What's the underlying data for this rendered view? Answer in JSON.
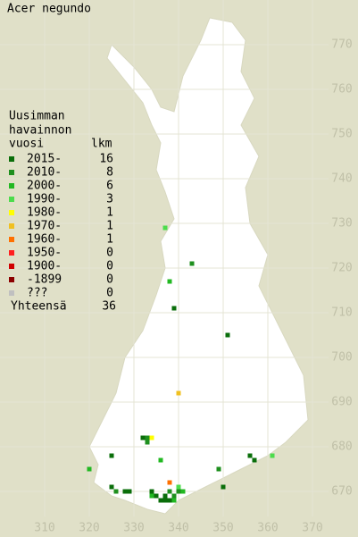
{
  "title": "Acer negundo",
  "legend": {
    "heading": [
      "Uusimman",
      "havainnon",
      "vuosi"
    ],
    "count_heading": "lkm",
    "rows": [
      {
        "label": "2015-",
        "count": 16,
        "color": "#0a6e0a"
      },
      {
        "label": "2010-",
        "count": 8,
        "color": "#1e8f1e"
      },
      {
        "label": "2000-",
        "count": 6,
        "color": "#22b822"
      },
      {
        "label": "1990-",
        "count": 3,
        "color": "#4cdc4c"
      },
      {
        "label": "1980-",
        "count": 1,
        "color": "#ffff00"
      },
      {
        "label": "1970-",
        "count": 1,
        "color": "#f0c020"
      },
      {
        "label": "1960-",
        "count": 1,
        "color": "#ff7000"
      },
      {
        "label": "1950-",
        "count": 0,
        "color": "#ff2020"
      },
      {
        "label": "1900-",
        "count": 0,
        "color": "#d00000"
      },
      {
        "label": "-1899",
        "count": 0,
        "color": "#8c0000"
      },
      {
        "label": "???",
        "count": 0,
        "color": "#c0c0c0"
      }
    ],
    "total_label": "Yhteensä",
    "total": 36
  },
  "map": {
    "xlim": [
      300,
      380
    ],
    "ylim": [
      660,
      780
    ],
    "xticks": [
      310,
      320,
      330,
      340,
      350,
      360,
      370
    ],
    "yticks": [
      670,
      680,
      690,
      700,
      710,
      720,
      730,
      740,
      750,
      760,
      770
    ],
    "points": [
      {
        "x": 339,
        "y": 711,
        "period": 0
      },
      {
        "x": 351,
        "y": 705,
        "period": 0
      },
      {
        "x": 332,
        "y": 682,
        "period": 0
      },
      {
        "x": 325,
        "y": 678,
        "period": 0
      },
      {
        "x": 356,
        "y": 678,
        "period": 0
      },
      {
        "x": 357,
        "y": 677,
        "period": 0
      },
      {
        "x": 325,
        "y": 671,
        "period": 0
      },
      {
        "x": 328,
        "y": 670,
        "period": 0
      },
      {
        "x": 329,
        "y": 670,
        "period": 0
      },
      {
        "x": 334,
        "y": 670,
        "period": 0
      },
      {
        "x": 335,
        "y": 669,
        "period": 0
      },
      {
        "x": 336,
        "y": 668,
        "period": 0
      },
      {
        "x": 337,
        "y": 668,
        "period": 0
      },
      {
        "x": 337,
        "y": 669,
        "period": 0
      },
      {
        "x": 338,
        "y": 668,
        "period": 0
      },
      {
        "x": 350,
        "y": 671,
        "period": 0
      },
      {
        "x": 343,
        "y": 721,
        "period": 1
      },
      {
        "x": 333,
        "y": 682,
        "period": 1
      },
      {
        "x": 349,
        "y": 675,
        "period": 1
      },
      {
        "x": 326,
        "y": 670,
        "period": 1
      },
      {
        "x": 338,
        "y": 670,
        "period": 1
      },
      {
        "x": 340,
        "y": 670,
        "period": 1
      },
      {
        "x": 339,
        "y": 669,
        "period": 1
      },
      {
        "x": 333,
        "y": 681,
        "period": 1
      },
      {
        "x": 338,
        "y": 717,
        "period": 2
      },
      {
        "x": 320,
        "y": 675,
        "period": 2
      },
      {
        "x": 336,
        "y": 677,
        "period": 2
      },
      {
        "x": 341,
        "y": 670,
        "period": 2
      },
      {
        "x": 339,
        "y": 668,
        "period": 2
      },
      {
        "x": 334,
        "y": 669,
        "period": 2
      },
      {
        "x": 337,
        "y": 729,
        "period": 3
      },
      {
        "x": 361,
        "y": 678,
        "period": 3
      },
      {
        "x": 340,
        "y": 671,
        "period": 3
      },
      {
        "x": 334,
        "y": 682,
        "period": 4
      },
      {
        "x": 340,
        "y": 692,
        "period": 5
      },
      {
        "x": 338,
        "y": 672,
        "period": 6
      }
    ]
  }
}
